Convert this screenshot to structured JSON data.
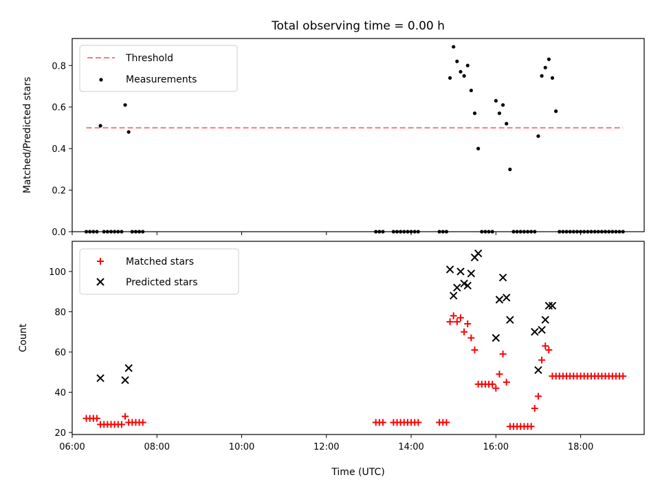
{
  "chart_data": [
    {
      "type": "scatter",
      "title": "Total observing time = 0.00 h",
      "xlabel": "",
      "ylabel": "Matched/Predicted stars",
      "xlim": [
        "06:00",
        "19:30"
      ],
      "ylim": [
        0,
        0.93
      ],
      "yticks": [
        "0.0",
        "0.2",
        "0.4",
        "0.6",
        "0.8"
      ],
      "legend": {
        "position": "top-left",
        "entries": [
          "Threshold",
          "Measurements"
        ]
      },
      "threshold": {
        "name": "Threshold",
        "x": [
          "06:20",
          "19:00"
        ],
        "y": 0.5,
        "color": "#ff7777",
        "style": "dashed"
      },
      "series": [
        {
          "name": "Measurements",
          "color": "#000000",
          "x": [
            "06:20",
            "06:25",
            "06:30",
            "06:35",
            "06:40",
            "06:45",
            "06:50",
            "06:55",
            "07:00",
            "07:05",
            "07:10",
            "07:15",
            "07:20",
            "07:25",
            "07:30",
            "07:35",
            "07:40",
            "13:10",
            "13:15",
            "13:20",
            "13:35",
            "13:40",
            "13:45",
            "13:50",
            "13:55",
            "14:00",
            "14:05",
            "14:10",
            "14:40",
            "14:45",
            "14:50",
            "14:55",
            "15:00",
            "15:05",
            "15:10",
            "15:15",
            "15:20",
            "15:25",
            "15:30",
            "15:35",
            "15:40",
            "15:45",
            "15:50",
            "15:55",
            "16:00",
            "16:05",
            "16:10",
            "16:15",
            "16:20",
            "16:25",
            "16:30",
            "16:35",
            "16:40",
            "16:45",
            "16:50",
            "16:55",
            "17:00",
            "17:05",
            "17:10",
            "17:15",
            "17:20",
            "17:25",
            "17:30",
            "17:35",
            "17:40",
            "17:45",
            "17:50",
            "17:55",
            "18:00",
            "18:05",
            "18:10",
            "18:15",
            "18:20",
            "18:25",
            "18:30",
            "18:35",
            "18:40",
            "18:45",
            "18:50",
            "18:55",
            "19:00"
          ],
          "y": [
            0,
            0,
            0,
            0,
            0.51,
            0,
            0,
            0,
            0,
            0,
            0,
            0.61,
            0.48,
            0,
            0,
            0,
            0,
            0,
            0,
            0,
            0,
            0,
            0,
            0,
            0,
            0,
            0,
            0,
            0,
            0,
            0,
            0.74,
            0.89,
            0.82,
            0.77,
            0.75,
            0.8,
            0.68,
            0.57,
            0.4,
            0,
            0,
            0,
            0,
            0.63,
            0.57,
            0.61,
            0.52,
            0.3,
            0,
            0,
            0,
            0,
            0,
            0,
            0,
            0.46,
            0.75,
            0.79,
            0.83,
            0.74,
            0.58,
            0,
            0,
            0,
            0,
            0,
            0,
            0,
            0,
            0,
            0,
            0,
            0,
            0,
            0,
            0,
            0,
            0,
            0,
            0
          ]
        }
      ]
    },
    {
      "type": "scatter",
      "title": "",
      "xlabel": "Time (UTC)",
      "ylabel": "Count",
      "xlim": [
        "06:00",
        "19:30"
      ],
      "ylim": [
        19,
        115
      ],
      "xticks": [
        "06:00",
        "08:00",
        "10:00",
        "12:00",
        "14:00",
        "16:00",
        "18:00"
      ],
      "yticks": [
        "20",
        "40",
        "60",
        "80",
        "100"
      ],
      "legend": {
        "position": "top-left",
        "entries": [
          "Matched stars",
          "Predicted stars"
        ]
      },
      "series": [
        {
          "name": "Matched stars",
          "marker": "+",
          "color": "#ff0000",
          "x": [
            "06:20",
            "06:25",
            "06:30",
            "06:35",
            "06:40",
            "06:45",
            "06:50",
            "06:55",
            "07:00",
            "07:05",
            "07:10",
            "07:15",
            "07:20",
            "07:25",
            "07:30",
            "07:35",
            "07:40",
            "13:10",
            "13:15",
            "13:20",
            "13:35",
            "13:40",
            "13:45",
            "13:50",
            "13:55",
            "14:00",
            "14:05",
            "14:10",
            "14:40",
            "14:45",
            "14:50",
            "14:55",
            "15:00",
            "15:05",
            "15:10",
            "15:15",
            "15:20",
            "15:25",
            "15:30",
            "15:35",
            "15:40",
            "15:45",
            "15:50",
            "15:55",
            "16:00",
            "16:05",
            "16:10",
            "16:15",
            "16:20",
            "16:25",
            "16:30",
            "16:35",
            "16:40",
            "16:45",
            "16:50",
            "16:55",
            "17:00",
            "17:05",
            "17:10",
            "17:15",
            "17:20",
            "17:25",
            "17:30",
            "17:35",
            "17:40",
            "17:45",
            "17:50",
            "17:55",
            "18:00",
            "18:05",
            "18:10",
            "18:15",
            "18:20",
            "18:25",
            "18:30",
            "18:35",
            "18:40",
            "18:45",
            "18:50",
            "18:55",
            "19:00"
          ],
          "y": [
            27,
            27,
            27,
            27,
            24,
            24,
            24,
            24,
            24,
            24,
            24,
            28,
            25,
            25,
            25,
            25,
            25,
            25,
            25,
            25,
            25,
            25,
            25,
            25,
            25,
            25,
            25,
            25,
            25,
            25,
            25,
            75,
            78,
            75,
            77,
            70,
            74,
            67,
            61,
            44,
            44,
            44,
            44,
            44,
            42,
            49,
            59,
            45,
            23,
            23,
            23,
            23,
            23,
            23,
            23,
            32,
            38,
            56,
            63,
            61,
            48,
            48,
            48,
            48,
            48,
            48,
            48,
            48,
            48,
            48,
            48,
            48,
            48,
            48,
            48,
            48,
            48,
            48,
            48,
            48,
            48
          ]
        },
        {
          "name": "Predicted stars",
          "marker": "x",
          "color": "#000000",
          "x": [
            "06:40",
            "07:15",
            "07:20",
            "14:55",
            "15:00",
            "15:05",
            "15:10",
            "15:15",
            "15:20",
            "15:25",
            "15:30",
            "15:35",
            "16:00",
            "16:05",
            "16:10",
            "16:15",
            "16:20",
            "16:55",
            "17:00",
            "17:05",
            "17:10",
            "17:15",
            "17:20"
          ],
          "y": [
            47,
            46,
            52,
            101,
            88,
            92,
            100,
            94,
            93,
            99,
            107,
            109,
            67,
            86,
            97,
            87,
            76,
            70,
            51,
            71,
            76,
            83,
            83
          ]
        }
      ]
    }
  ]
}
